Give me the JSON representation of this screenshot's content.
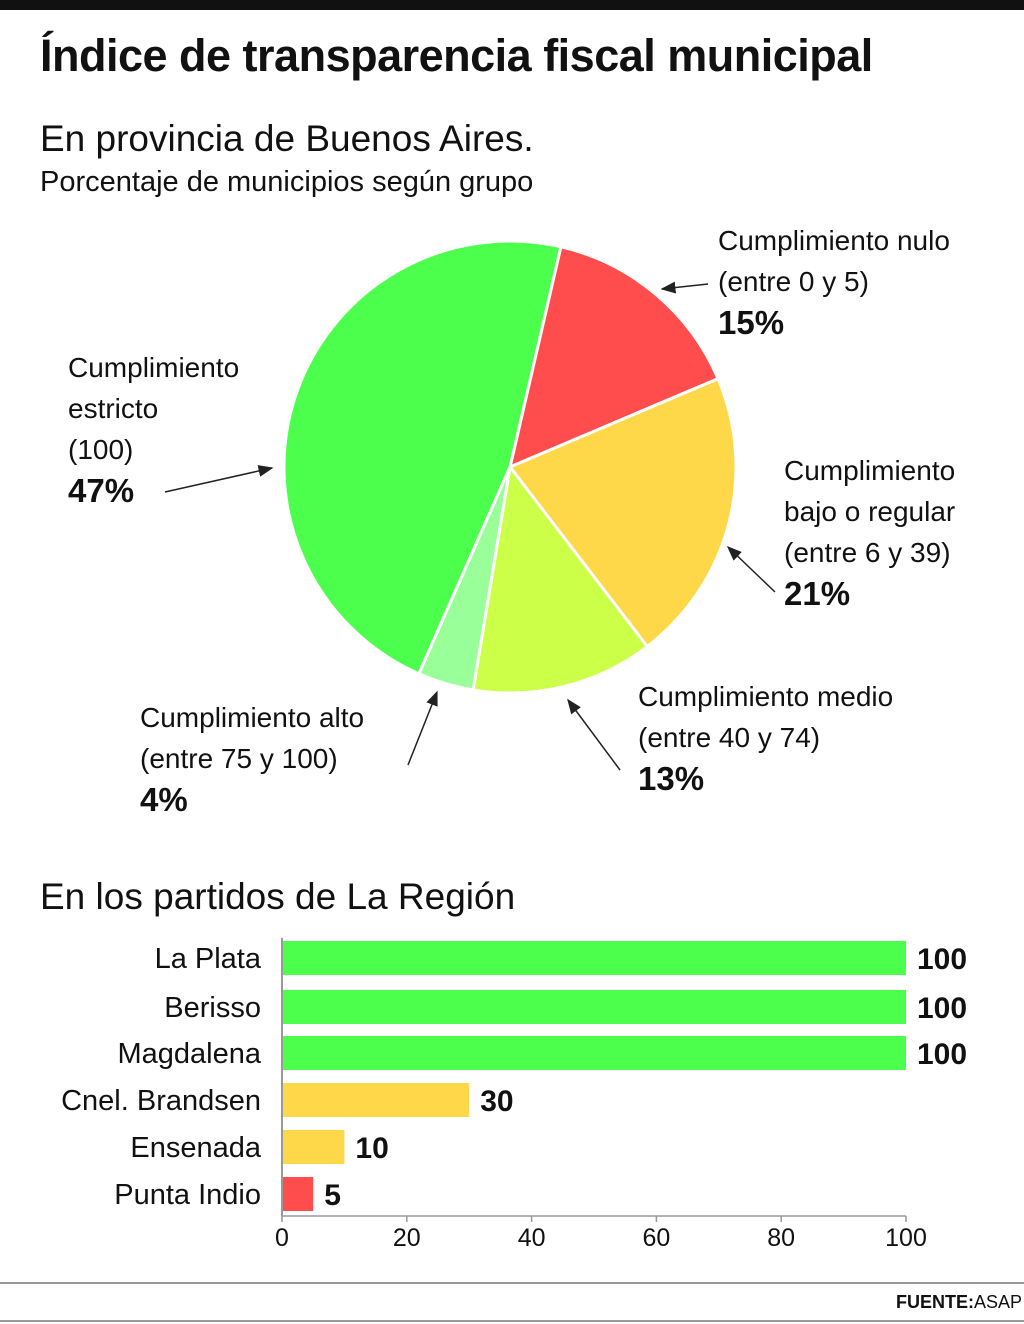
{
  "title": "Índice de transparencia fiscal municipal",
  "subtitle": "En provincia de Buenos Aires.",
  "subsubtitle": "Porcentaje de municipios según grupo",
  "source_label": "FUENTE:",
  "source_value": "ASAP",
  "chart_data": [
    {
      "type": "pie",
      "title": "En provincia de Buenos Aires.",
      "slices": [
        {
          "label": "Cumplimiento nulo",
          "range": "(entre 0 y 5)",
          "value": 15,
          "display": "15%",
          "color": "#ff4d4d"
        },
        {
          "label": "Cumplimiento bajo o regular",
          "range": "(entre 6 y 39)",
          "value": 21,
          "display": "21%",
          "color": "#ffd84a"
        },
        {
          "label": "Cumplimiento medio",
          "range": "(entre 40 y 74)",
          "value": 13,
          "display": "13%",
          "color": "#ccff47"
        },
        {
          "label": "Cumplimiento alto",
          "range": "(entre 75 y 100)",
          "value": 4,
          "display": "4%",
          "color": "#99ff99"
        },
        {
          "label": "Cumplimiento estricto",
          "range": "(100)",
          "value": 47,
          "display": "47%",
          "color": "#4cff4c"
        }
      ]
    },
    {
      "type": "bar",
      "orientation": "horizontal",
      "title": "En los partidos de La Región",
      "categories": [
        "La Plata",
        "Berisso",
        "Magdalena",
        "Cnel. Brandsen",
        "Ensenada",
        "Punta Indio"
      ],
      "values": [
        100,
        100,
        100,
        30,
        10,
        5
      ],
      "colors": [
        "#4cff4c",
        "#4cff4c",
        "#4cff4c",
        "#ffd84a",
        "#ffd84a",
        "#ff4d4d"
      ],
      "xlim": [
        0,
        100
      ],
      "xticks": [
        "0",
        "20",
        "40",
        "60",
        "80",
        "100"
      ]
    }
  ]
}
